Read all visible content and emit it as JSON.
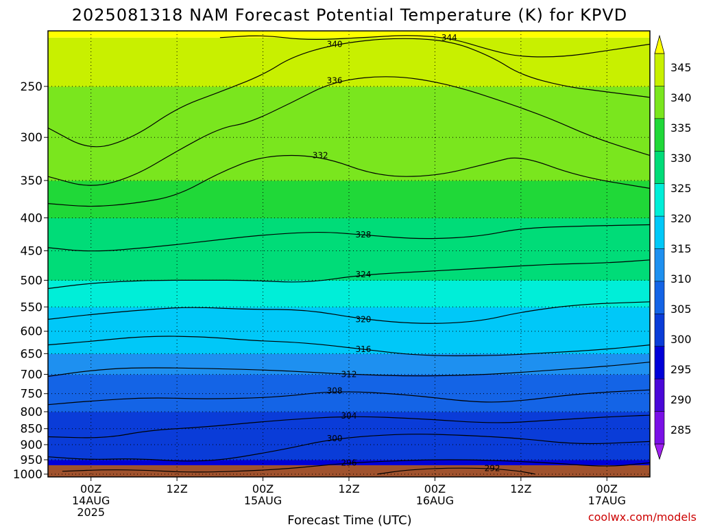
{
  "chart_data": {
    "type": "heatmap",
    "title": "2025081318 NAM Forecast Potential Temperature (K) for KPVD",
    "xlabel": "Forecast Time (UTC)",
    "ylabel": "",
    "credit": "coolwx.com/models",
    "y_scale": "log-pressure",
    "y_ticks": [
      250,
      300,
      350,
      400,
      450,
      500,
      550,
      600,
      650,
      700,
      750,
      800,
      850,
      900,
      950,
      1000
    ],
    "ylim": [
      1010,
      205
    ],
    "x_ticks": [
      {
        "hour": 6,
        "line1": "00Z",
        "line2": "14AUG",
        "line3": "2025"
      },
      {
        "hour": 18,
        "line1": "12Z",
        "line2": "",
        "line3": ""
      },
      {
        "hour": 30,
        "line1": "00Z",
        "line2": "15AUG",
        "line3": ""
      },
      {
        "hour": 42,
        "line1": "12Z",
        "line2": "",
        "line3": ""
      },
      {
        "hour": 54,
        "line1": "00Z",
        "line2": "16AUG",
        "line3": ""
      },
      {
        "hour": 66,
        "line1": "12Z",
        "line2": "",
        "line3": ""
      },
      {
        "hour": 78,
        "line1": "00Z",
        "line2": "17AUG",
        "line3": ""
      }
    ],
    "xlim": [
      0,
      84
    ],
    "colorbar": {
      "levels": [
        285,
        290,
        295,
        300,
        305,
        310,
        315,
        320,
        325,
        330,
        335,
        340,
        345
      ],
      "colors": [
        "#a020f0",
        "#7a10e6",
        "#4a08d8",
        "#0000d8",
        "#0a3cd8",
        "#1464e6",
        "#1e90f0",
        "#00c8f8",
        "#00eed8",
        "#00dc78",
        "#20d838",
        "#7ae61e",
        "#c8f000",
        "#ffff00"
      ]
    },
    "level_profile": [
      {
        "p": 1000,
        "theta": 297
      },
      {
        "p": 950,
        "theta": 300
      },
      {
        "p": 900,
        "theta": 301
      },
      {
        "p": 850,
        "theta": 303
      },
      {
        "p": 800,
        "theta": 305
      },
      {
        "p": 750,
        "theta": 308
      },
      {
        "p": 700,
        "theta": 311
      },
      {
        "p": 650,
        "theta": 314
      },
      {
        "p": 600,
        "theta": 317
      },
      {
        "p": 550,
        "theta": 320
      },
      {
        "p": 500,
        "theta": 323
      },
      {
        "p": 450,
        "theta": 327
      },
      {
        "p": 400,
        "theta": 331
      },
      {
        "p": 350,
        "theta": 334
      },
      {
        "p": 300,
        "theta": 338
      },
      {
        "p": 250,
        "theta": 341
      },
      {
        "p": 210,
        "theta": 345
      }
    ],
    "isentropes": [
      {
        "label": "292",
        "points": [
          [
            46,
            1000
          ],
          [
            50,
            985
          ],
          [
            56,
            978
          ],
          [
            62,
            980
          ],
          [
            66,
            990
          ],
          [
            68,
            1000
          ]
        ]
      },
      {
        "label": "296",
        "points": [
          [
            2,
            990
          ],
          [
            8,
            984
          ],
          [
            14,
            986
          ],
          [
            20,
            995
          ],
          [
            32,
            985
          ],
          [
            42,
            960
          ],
          [
            52,
            950
          ],
          [
            60,
            950
          ],
          [
            70,
            960
          ],
          [
            78,
            975
          ],
          [
            84,
            960
          ]
        ]
      },
      {
        "label": "300",
        "points": [
          [
            0,
            940
          ],
          [
            6,
            950
          ],
          [
            12,
            945
          ],
          [
            22,
            960
          ],
          [
            32,
            920
          ],
          [
            40,
            880
          ],
          [
            50,
            865
          ],
          [
            58,
            870
          ],
          [
            66,
            880
          ],
          [
            74,
            900
          ],
          [
            84,
            890
          ]
        ]
      },
      {
        "label": "304",
        "points": [
          [
            0,
            875
          ],
          [
            8,
            880
          ],
          [
            14,
            855
          ],
          [
            22,
            845
          ],
          [
            32,
            825
          ],
          [
            42,
            812
          ],
          [
            52,
            820
          ],
          [
            62,
            835
          ],
          [
            70,
            825
          ],
          [
            78,
            815
          ],
          [
            84,
            810
          ]
        ]
      },
      {
        "label": "308",
        "points": [
          [
            0,
            780
          ],
          [
            6,
            770
          ],
          [
            14,
            760
          ],
          [
            22,
            765
          ],
          [
            32,
            760
          ],
          [
            40,
            742
          ],
          [
            50,
            752
          ],
          [
            60,
            775
          ],
          [
            66,
            770
          ],
          [
            74,
            750
          ],
          [
            84,
            740
          ]
        ]
      },
      {
        "label": "312",
        "points": [
          [
            0,
            705
          ],
          [
            6,
            690
          ],
          [
            12,
            683
          ],
          [
            22,
            685
          ],
          [
            32,
            690
          ],
          [
            42,
            700
          ],
          [
            52,
            705
          ],
          [
            62,
            700
          ],
          [
            70,
            690
          ],
          [
            78,
            680
          ],
          [
            84,
            670
          ]
        ]
      },
      {
        "label": "316",
        "points": [
          [
            0,
            630
          ],
          [
            6,
            622
          ],
          [
            14,
            610
          ],
          [
            22,
            612
          ],
          [
            28,
            620
          ],
          [
            36,
            625
          ],
          [
            44,
            640
          ],
          [
            52,
            655
          ],
          [
            62,
            655
          ],
          [
            70,
            648
          ],
          [
            78,
            640
          ],
          [
            84,
            630
          ]
        ]
      },
      {
        "label": "320",
        "points": [
          [
            0,
            575
          ],
          [
            6,
            565
          ],
          [
            14,
            555
          ],
          [
            20,
            550
          ],
          [
            28,
            555
          ],
          [
            36,
            555
          ],
          [
            44,
            575
          ],
          [
            52,
            585
          ],
          [
            60,
            580
          ],
          [
            66,
            560
          ],
          [
            74,
            545
          ],
          [
            84,
            540
          ]
        ]
      },
      {
        "label": "324",
        "points": [
          [
            0,
            515
          ],
          [
            6,
            505
          ],
          [
            14,
            500
          ],
          [
            22,
            500
          ],
          [
            28,
            500
          ],
          [
            36,
            505
          ],
          [
            44,
            490
          ],
          [
            52,
            485
          ],
          [
            62,
            478
          ],
          [
            70,
            472
          ],
          [
            78,
            470
          ],
          [
            84,
            465
          ]
        ]
      },
      {
        "label": "328",
        "points": [
          [
            0,
            445
          ],
          [
            6,
            452
          ],
          [
            14,
            445
          ],
          [
            22,
            435
          ],
          [
            30,
            425
          ],
          [
            38,
            420
          ],
          [
            44,
            425
          ],
          [
            52,
            432
          ],
          [
            60,
            428
          ],
          [
            66,
            415
          ],
          [
            74,
            412
          ],
          [
            84,
            410
          ]
        ]
      },
      {
        "label": "332",
        "points": [
          [
            0,
            380
          ],
          [
            6,
            385
          ],
          [
            12,
            380
          ],
          [
            18,
            370
          ],
          [
            24,
            340
          ],
          [
            30,
            320
          ],
          [
            38,
            320
          ],
          [
            46,
            345
          ],
          [
            54,
            345
          ],
          [
            62,
            328
          ],
          [
            66,
            320
          ],
          [
            74,
            345
          ],
          [
            84,
            360
          ]
        ]
      },
      {
        "label": "336",
        "points": [
          [
            0,
            345
          ],
          [
            6,
            360
          ],
          [
            12,
            345
          ],
          [
            18,
            315
          ],
          [
            24,
            290
          ],
          [
            28,
            285
          ],
          [
            34,
            265
          ],
          [
            40,
            245
          ],
          [
            48,
            240
          ],
          [
            56,
            248
          ],
          [
            64,
            265
          ],
          [
            70,
            280
          ],
          [
            76,
            300
          ],
          [
            84,
            320
          ]
        ]
      },
      {
        "label": "340",
        "points": [
          [
            0,
            290
          ],
          [
            6,
            315
          ],
          [
            12,
            300
          ],
          [
            18,
            270
          ],
          [
            24,
            255
          ],
          [
            30,
            240
          ],
          [
            34,
            225
          ],
          [
            40,
            215
          ],
          [
            48,
            210
          ],
          [
            56,
            212
          ],
          [
            62,
            225
          ],
          [
            66,
            240
          ],
          [
            72,
            250
          ],
          [
            78,
            255
          ],
          [
            84,
            260
          ]
        ]
      },
      {
        "label": "344",
        "points": [
          [
            24,
            210
          ],
          [
            30,
            208
          ],
          [
            36,
            212
          ],
          [
            44,
            210
          ],
          [
            50,
            208
          ],
          [
            56,
            210
          ],
          [
            62,
            220
          ],
          [
            66,
            225
          ],
          [
            72,
            225
          ],
          [
            78,
            220
          ],
          [
            84,
            215
          ]
        ]
      }
    ]
  }
}
